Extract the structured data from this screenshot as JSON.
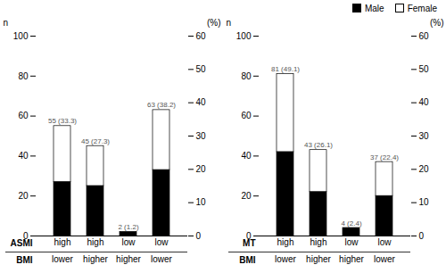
{
  "chart_data": [
    {
      "type": "bar",
      "stacked": true,
      "categories": [
        [
          "high",
          "lower"
        ],
        [
          "high",
          "higher"
        ],
        [
          "low",
          "higher"
        ],
        [
          "low",
          "lower"
        ]
      ],
      "xlabel": [
        "ASMI",
        "BMI"
      ],
      "ylabel": "n",
      "ylim": [
        0,
        100
      ],
      "yticks": [
        0,
        20,
        40,
        60,
        80,
        100
      ],
      "y2label": "(%)",
      "y2lim": [
        0,
        60
      ],
      "y2ticks": [
        0,
        10,
        20,
        30,
        40,
        50,
        60
      ],
      "series": [
        {
          "name": "Male",
          "color": "#000000",
          "values": [
            27,
            25,
            2,
            33
          ]
        },
        {
          "name": "Female",
          "color": "#ffffff",
          "values": [
            28,
            20,
            0,
            30
          ]
        }
      ],
      "totals": [
        55,
        45,
        2,
        63
      ],
      "total_labels": [
        "55 (33.3)",
        "45 (27.3)",
        "2 (1.2)",
        "63 (38.2)"
      ]
    },
    {
      "type": "bar",
      "stacked": true,
      "categories": [
        [
          "high",
          "lower"
        ],
        [
          "high",
          "higher"
        ],
        [
          "low",
          "higher"
        ],
        [
          "low",
          "lower"
        ]
      ],
      "xlabel": [
        "MT",
        "BMI"
      ],
      "ylabel": "n",
      "ylim": [
        0,
        100
      ],
      "yticks": [
        0,
        20,
        40,
        60,
        80,
        100
      ],
      "y2label": "(%)",
      "y2lim": [
        0,
        60
      ],
      "y2ticks": [
        0,
        10,
        20,
        30,
        40,
        50,
        60
      ],
      "series": [
        {
          "name": "Male",
          "color": "#000000",
          "values": [
            42,
            22,
            4,
            20
          ]
        },
        {
          "name": "Female",
          "color": "#ffffff",
          "values": [
            39,
            21,
            0,
            17
          ]
        }
      ],
      "totals": [
        81,
        43,
        4,
        37
      ],
      "total_labels": [
        "81 (49.1)",
        "43 (26.1)",
        "4 (2.4)",
        "37 (22.4)"
      ],
      "legend": "upper right"
    }
  ]
}
